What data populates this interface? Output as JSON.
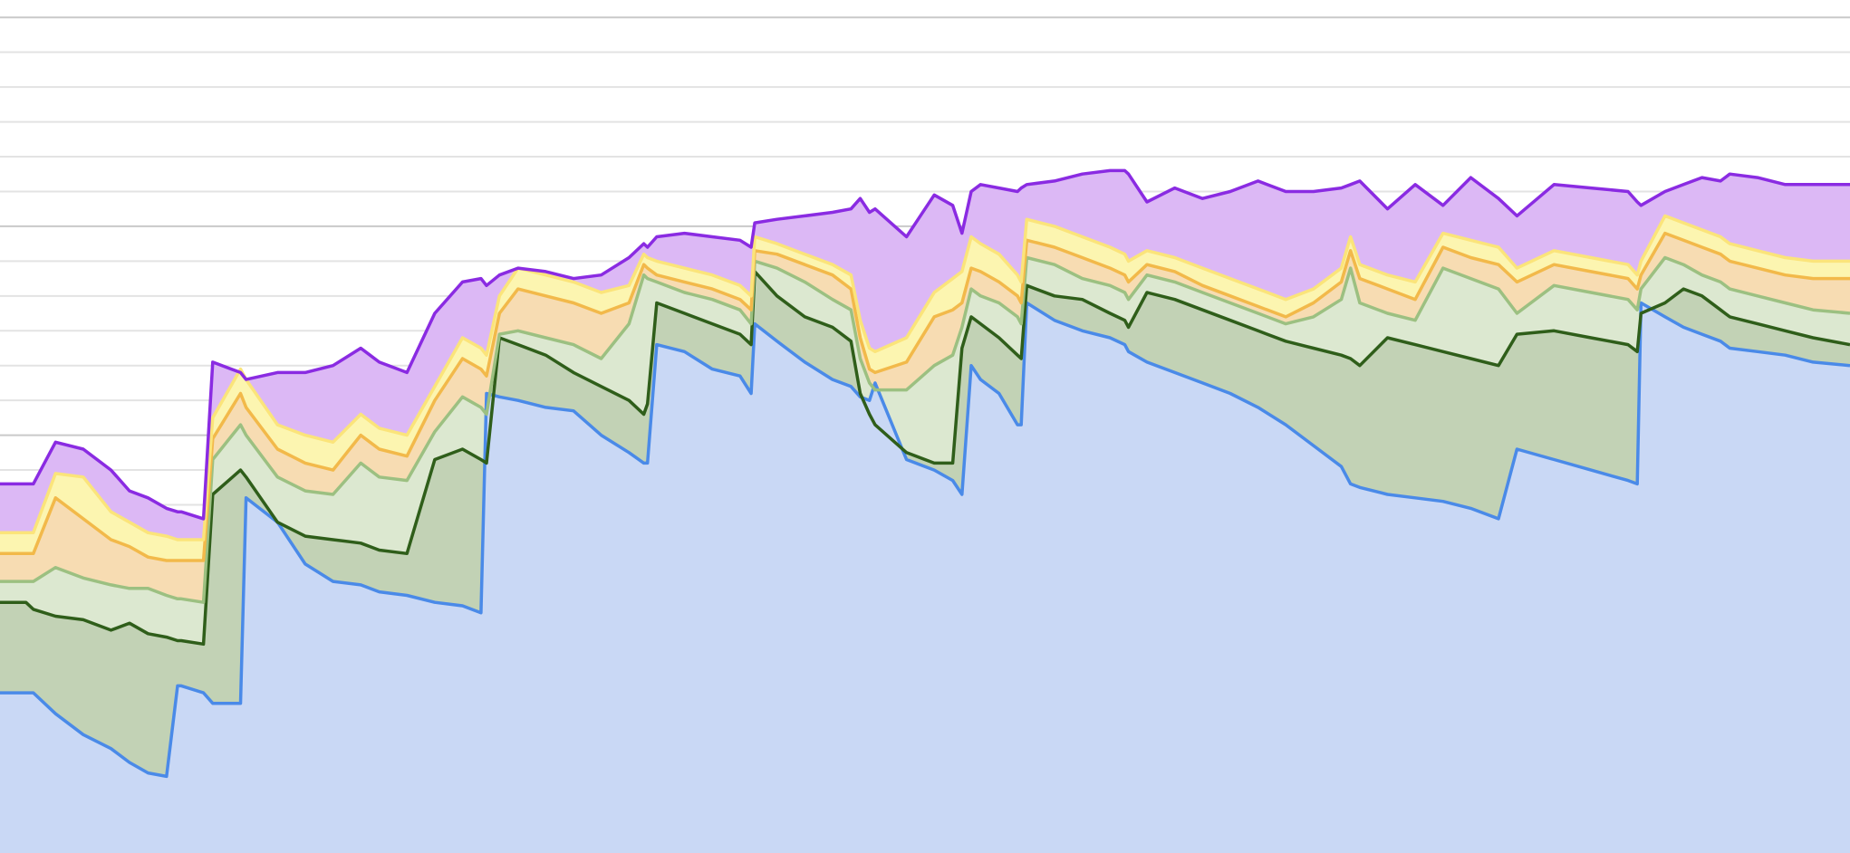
{
  "chart_data": {
    "type": "area",
    "title": "",
    "xlabel": "",
    "ylabel": "",
    "grid": true,
    "legend": "none",
    "x_range": [
      0,
      100
    ],
    "ylim": [
      0,
      24.5
    ],
    "x": [
      0,
      1.4,
      1.8,
      3,
      4.5,
      6,
      7,
      8,
      9,
      9.6,
      9.8,
      11,
      11.5,
      13,
      13.3,
      15,
      16.5,
      18,
      19.5,
      20,
      20.5,
      22,
      23.5,
      25,
      26,
      26.3,
      27,
      28,
      29.5,
      31,
      32.5,
      34,
      34.8,
      35,
      35.5,
      37,
      38.5,
      40,
      40.6,
      40.8,
      42,
      43.5,
      45,
      46,
      46.5,
      47,
      47.3,
      49,
      50.5,
      51.5,
      52,
      52.5,
      53,
      54,
      55,
      55.2,
      55.5,
      57,
      58.5,
      60,
      60.8,
      61,
      62,
      63.5,
      65,
      66.5,
      68,
      69.5,
      71,
      72.5,
      73,
      73.5,
      75,
      76.5,
      78,
      79.5,
      81,
      82,
      84,
      86,
      88,
      88.5,
      88.7,
      90,
      91,
      92,
      93,
      93.5,
      95,
      96.5,
      98,
      100
    ],
    "series": [
      {
        "color": "#4a8ae8",
        "fill": "#c9d8f5",
        "values": [
          4.6,
          4.6,
          4.6,
          4.0,
          3.4,
          3.0,
          2.6,
          2.3,
          2.2,
          4.8,
          4.8,
          4.6,
          4.3,
          4.3,
          10.2,
          9.5,
          8.3,
          7.8,
          7.7,
          7.6,
          7.5,
          7.4,
          7.2,
          7.1,
          6.9,
          13.2,
          13.1,
          13.0,
          12.8,
          12.7,
          12.0,
          11.5,
          11.2,
          11.2,
          14.6,
          14.4,
          13.9,
          13.7,
          13.2,
          15.2,
          14.7,
          14.1,
          13.6,
          13.4,
          13.1,
          13.0,
          13.5,
          11.3,
          11.0,
          10.7,
          10.3,
          14.0,
          13.6,
          13.2,
          12.3,
          12.3,
          15.8,
          15.3,
          15.0,
          14.8,
          14.6,
          14.4,
          14.1,
          13.8,
          13.5,
          13.2,
          12.8,
          12.3,
          11.7,
          11.1,
          10.6,
          10.5,
          10.3,
          10.2,
          10.1,
          9.9,
          9.6,
          11.6,
          11.3,
          11.0,
          10.7,
          10.6,
          15.8,
          15.4,
          15.1,
          14.9,
          14.7,
          14.5,
          14.4,
          14.3,
          14.1,
          14.0
        ]
      },
      {
        "color": "#2f5e1a",
        "fill": "#c2d2b5",
        "values": [
          7.2,
          7.2,
          7.0,
          6.8,
          6.7,
          6.4,
          6.6,
          6.3,
          6.2,
          6.1,
          6.1,
          6.0,
          10.3,
          11.0,
          10.8,
          9.5,
          9.1,
          9.0,
          8.9,
          8.8,
          8.7,
          8.6,
          11.3,
          11.6,
          11.3,
          11.2,
          14.8,
          14.6,
          14.3,
          13.8,
          13.4,
          13.0,
          12.6,
          12.9,
          15.8,
          15.5,
          15.2,
          14.9,
          14.6,
          16.7,
          16.0,
          15.4,
          15.1,
          14.7,
          13.2,
          12.6,
          12.3,
          11.5,
          11.2,
          11.2,
          14.5,
          15.4,
          15.2,
          14.8,
          14.3,
          14.2,
          16.3,
          16.0,
          15.9,
          15.5,
          15.3,
          15.1,
          16.1,
          15.9,
          15.6,
          15.3,
          15.0,
          14.7,
          14.5,
          14.3,
          14.2,
          14.0,
          14.8,
          14.6,
          14.4,
          14.2,
          14.0,
          14.9,
          15.0,
          14.8,
          14.6,
          14.4,
          15.5,
          15.8,
          16.2,
          16.0,
          15.6,
          15.4,
          15.2,
          15.0,
          14.8,
          14.6
        ]
      },
      {
        "color": "#9cc081",
        "fill": "#dce8d0",
        "values": [
          7.8,
          7.8,
          7.8,
          8.2,
          7.9,
          7.7,
          7.6,
          7.6,
          7.4,
          7.3,
          7.3,
          7.2,
          11.3,
          12.3,
          12.0,
          10.8,
          10.4,
          10.3,
          11.2,
          11.0,
          10.8,
          10.7,
          12.1,
          13.1,
          12.8,
          12.6,
          14.9,
          15.0,
          14.8,
          14.6,
          14.2,
          15.2,
          16.6,
          16.5,
          16.4,
          16.1,
          15.9,
          15.6,
          15.2,
          17.0,
          16.8,
          16.4,
          15.9,
          15.6,
          14.2,
          13.5,
          13.3,
          13.3,
          14.0,
          14.3,
          15.1,
          16.2,
          16.0,
          15.8,
          15.4,
          15.2,
          17.1,
          16.9,
          16.5,
          16.3,
          16.1,
          15.9,
          16.6,
          16.4,
          16.1,
          15.8,
          15.5,
          15.2,
          15.4,
          15.9,
          16.8,
          15.8,
          15.5,
          15.3,
          16.8,
          16.5,
          16.2,
          15.5,
          16.3,
          16.1,
          15.9,
          15.6,
          16.2,
          17.1,
          16.9,
          16.6,
          16.4,
          16.2,
          16.0,
          15.8,
          15.6,
          15.5
        ]
      },
      {
        "color": "#f2b94a",
        "fill": "#f7dcb2",
        "values": [
          8.6,
          8.6,
          8.6,
          10.2,
          9.6,
          9.0,
          8.8,
          8.5,
          8.4,
          8.4,
          8.4,
          8.4,
          11.9,
          13.2,
          12.8,
          11.6,
          11.2,
          11.0,
          12.0,
          11.8,
          11.6,
          11.4,
          13.0,
          14.2,
          13.9,
          13.7,
          15.5,
          16.2,
          16.0,
          15.8,
          15.5,
          15.8,
          16.9,
          16.8,
          16.6,
          16.4,
          16.2,
          15.9,
          15.6,
          17.3,
          17.2,
          16.9,
          16.6,
          16.2,
          14.8,
          13.9,
          13.8,
          14.1,
          15.4,
          15.6,
          15.8,
          16.8,
          16.7,
          16.4,
          16.0,
          15.8,
          17.6,
          17.4,
          17.1,
          16.8,
          16.6,
          16.4,
          16.9,
          16.7,
          16.3,
          16.0,
          15.7,
          15.4,
          15.8,
          16.4,
          17.3,
          16.5,
          16.2,
          15.9,
          17.4,
          17.1,
          16.9,
          16.4,
          16.9,
          16.7,
          16.5,
          16.2,
          16.6,
          17.8,
          17.6,
          17.4,
          17.2,
          17.0,
          16.8,
          16.6,
          16.5,
          16.5
        ]
      },
      {
        "color": "#fbe47a",
        "fill": "#fcf5b0",
        "values": [
          9.2,
          9.2,
          9.2,
          10.9,
          10.8,
          9.8,
          9.5,
          9.2,
          9.1,
          9.0,
          9.0,
          9.0,
          12.5,
          13.9,
          13.6,
          12.3,
          12.0,
          11.8,
          12.6,
          12.4,
          12.2,
          12.0,
          13.4,
          14.8,
          14.5,
          14.3,
          16.0,
          16.8,
          16.6,
          16.4,
          16.1,
          16.3,
          17.2,
          17.1,
          17.0,
          16.8,
          16.6,
          16.3,
          16.0,
          17.7,
          17.5,
          17.2,
          16.9,
          16.6,
          15.3,
          14.5,
          14.4,
          14.8,
          16.1,
          16.5,
          16.7,
          17.7,
          17.5,
          17.2,
          16.6,
          16.4,
          18.2,
          18.0,
          17.7,
          17.4,
          17.2,
          17.0,
          17.3,
          17.1,
          16.8,
          16.5,
          16.2,
          15.9,
          16.2,
          16.8,
          17.7,
          16.9,
          16.6,
          16.4,
          17.8,
          17.6,
          17.4,
          16.8,
          17.3,
          17.1,
          16.9,
          16.6,
          17.0,
          18.3,
          18.1,
          17.9,
          17.7,
          17.5,
          17.3,
          17.1,
          17.0,
          17.0
        ]
      },
      {
        "color": "#8a2be2",
        "fill": "#dcb8f5",
        "values": [
          10.6,
          10.6,
          10.6,
          11.8,
          11.6,
          11.0,
          10.4,
          10.2,
          9.9,
          9.8,
          9.8,
          9.6,
          14.1,
          13.8,
          13.6,
          13.8,
          13.8,
          14.0,
          14.5,
          14.3,
          14.1,
          13.8,
          15.5,
          16.4,
          16.5,
          16.3,
          16.6,
          16.8,
          16.7,
          16.5,
          16.6,
          17.1,
          17.5,
          17.4,
          17.7,
          17.8,
          17.7,
          17.6,
          17.4,
          18.1,
          18.2,
          18.3,
          18.4,
          18.5,
          18.8,
          18.4,
          18.5,
          17.7,
          18.9,
          18.6,
          17.8,
          19.0,
          19.2,
          19.1,
          19.0,
          19.1,
          19.2,
          19.3,
          19.5,
          19.6,
          19.6,
          19.5,
          18.7,
          19.1,
          18.8,
          19.0,
          19.3,
          19.0,
          19.0,
          19.1,
          19.2,
          19.3,
          18.5,
          19.2,
          18.6,
          19.4,
          18.8,
          18.3,
          19.2,
          19.1,
          19.0,
          18.7,
          18.6,
          19.0,
          19.2,
          19.4,
          19.3,
          19.5,
          19.4,
          19.2,
          19.2,
          19.2
        ]
      }
    ]
  }
}
